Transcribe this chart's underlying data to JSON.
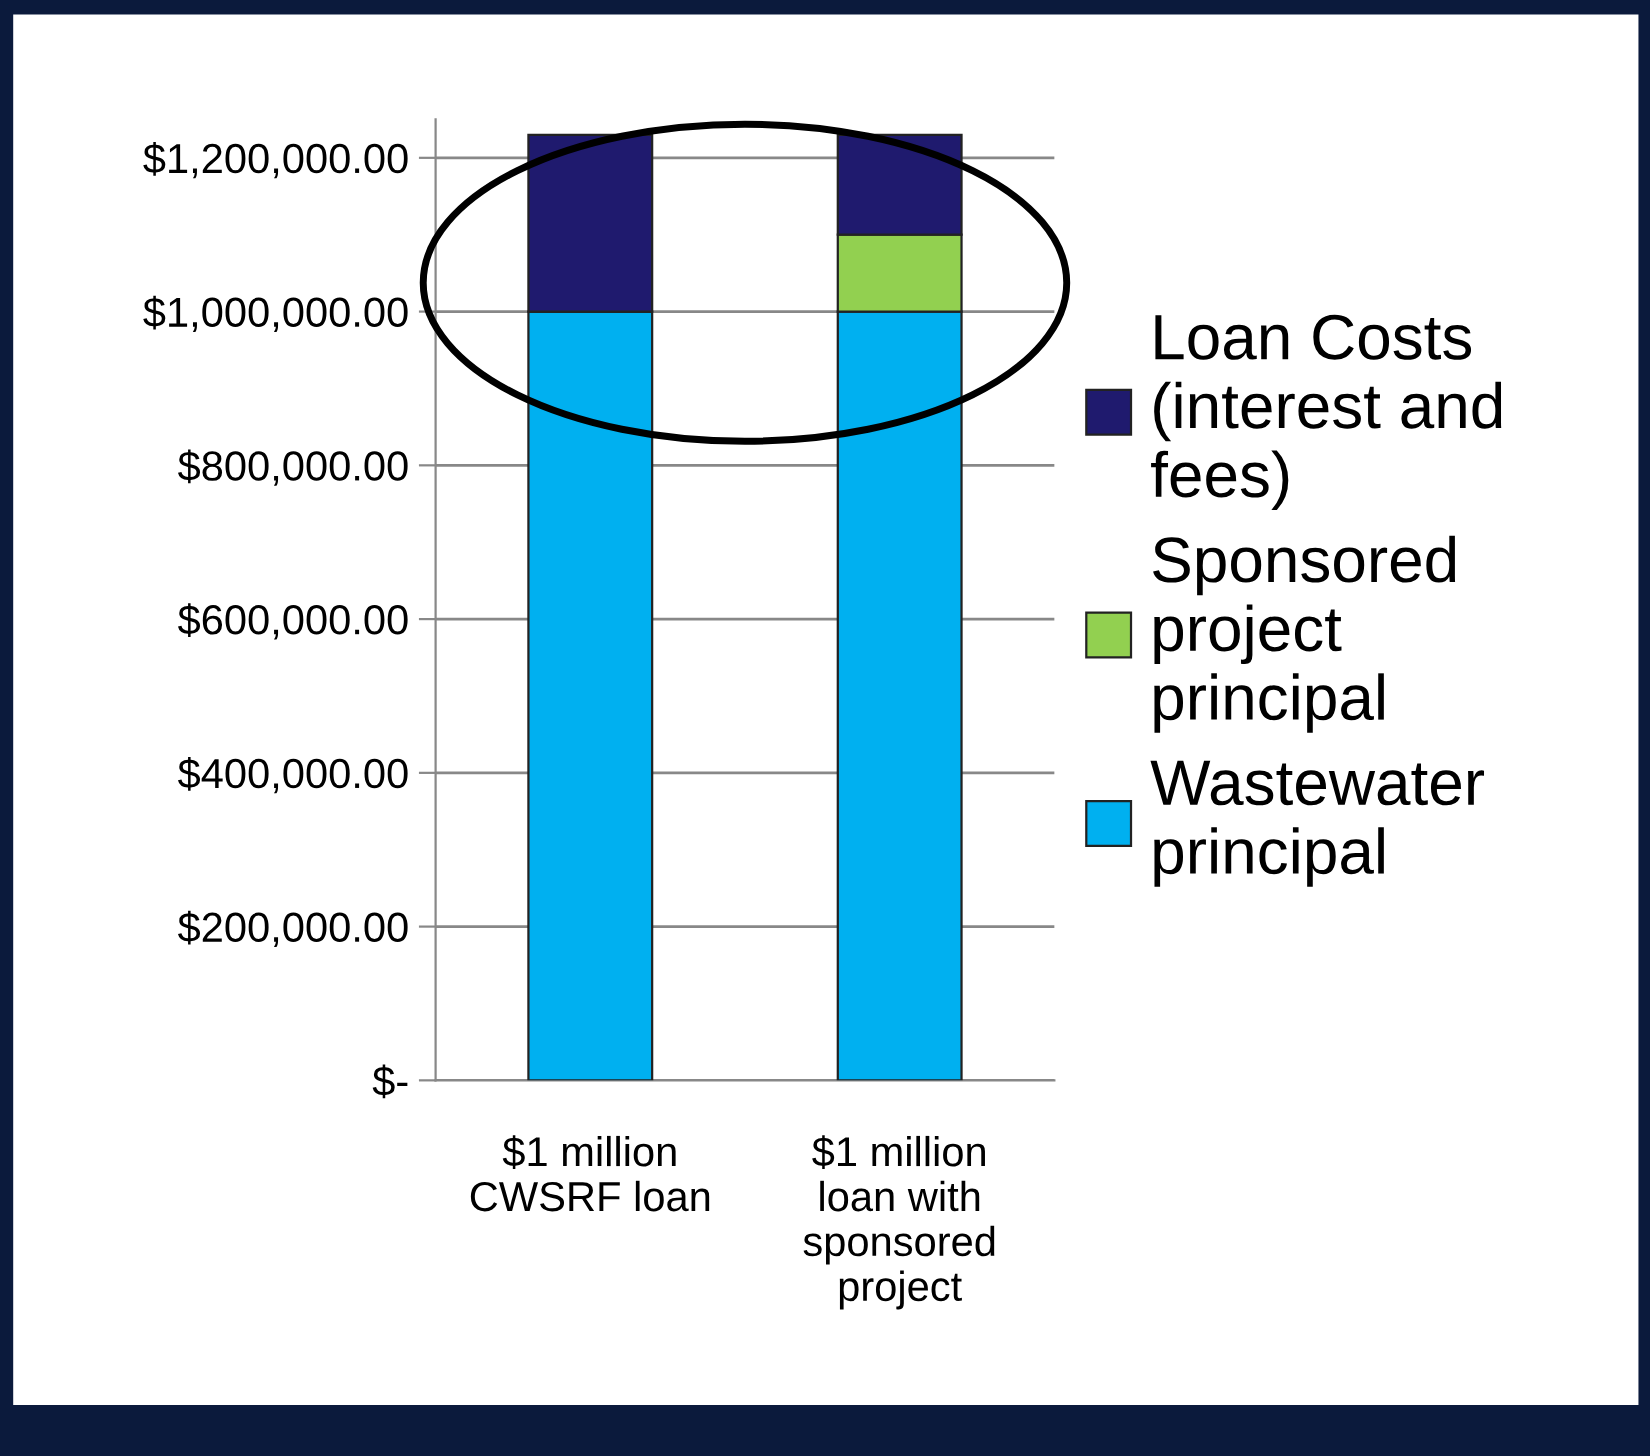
{
  "chart_data": {
    "type": "bar",
    "stacked": true,
    "categories": [
      "$1 million CWSRF loan",
      "$1 million loan with sponsored project"
    ],
    "series": [
      {
        "name": "Wastewater principal",
        "color": "#00b0f0",
        "values": [
          1000000,
          1000000
        ]
      },
      {
        "name": "Sponsored project principal",
        "color": "#92d050",
        "values": [
          0,
          100000
        ]
      },
      {
        "name": "Loan Costs (interest and fees)",
        "color": "#1f1a6e",
        "values": [
          230000,
          130000
        ]
      }
    ],
    "ylim": [
      0,
      1250000
    ],
    "yticks": [
      {
        "value": 0,
        "label": "$-"
      },
      {
        "value": 200000,
        "label": "$200,000.00"
      },
      {
        "value": 400000,
        "label": "$400,000.00"
      },
      {
        "value": 600000,
        "label": "$600,000.00"
      },
      {
        "value": 800000,
        "label": "$800,000.00"
      },
      {
        "value": 1000000,
        "label": "$1,000,000.00"
      },
      {
        "value": 1200000,
        "label": "$1,200,000.00"
      }
    ],
    "grid": "y",
    "legend": "right"
  }
}
